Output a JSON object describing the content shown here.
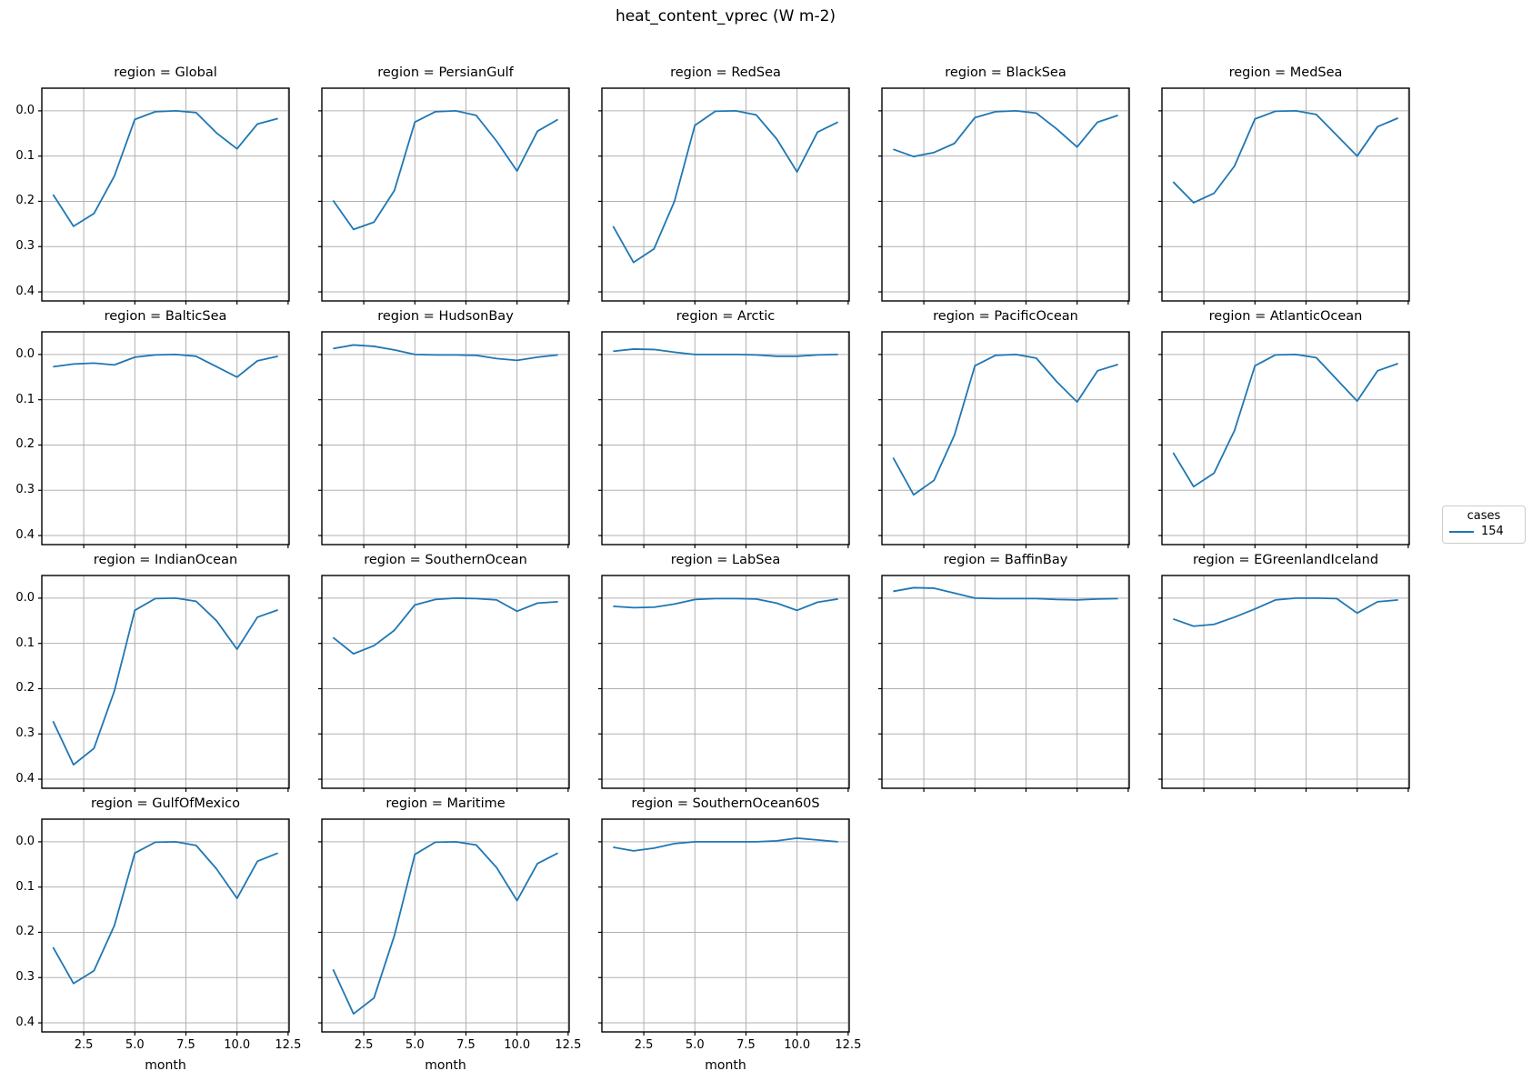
{
  "title": "heat_content_vprec (W m-2)",
  "legend": {
    "title": "cases",
    "entries": [
      {
        "label": "154",
        "color": "#1f77b4"
      }
    ]
  },
  "chart_data": {
    "type": "line",
    "title": "heat_content_vprec (W m-2)",
    "xlabel": "month",
    "x": [
      1,
      2,
      3,
      4,
      5,
      6,
      7,
      8,
      9,
      10,
      11,
      12
    ],
    "x_tick_labels": [
      "2.5",
      "5.0",
      "7.5",
      "10.0",
      "12.5"
    ],
    "x_ticks": [
      2.5,
      5.0,
      7.5,
      10.0,
      12.5
    ],
    "y_tick_labels": [
      "0.0",
      "0.1",
      "0.2",
      "0.3",
      "0.4"
    ],
    "y_ticks": [
      0.0,
      0.1,
      0.2,
      0.3,
      0.4
    ],
    "xlim": [
      0.45,
      12.55
    ],
    "ylim": [
      0.42,
      -0.05
    ],
    "y_axis_inverted": true,
    "grid": true,
    "line_color": "#1f77b4",
    "grid_color": "#b0b0b0",
    "series_name": "154",
    "legend_position": "right-middle",
    "layout": {
      "rows": 4,
      "cols": 5
    },
    "facet_title_prefix": "region = ",
    "facets": [
      {
        "region": "Global",
        "label": "region = Global",
        "values": [
          0.185,
          0.255,
          0.227,
          0.144,
          0.019,
          0.002,
          0.0,
          0.004,
          0.049,
          0.084,
          0.029,
          0.017
        ]
      },
      {
        "region": "PersianGulf",
        "label": "region = PersianGulf",
        "values": [
          0.198,
          0.262,
          0.246,
          0.176,
          0.025,
          0.002,
          0.0,
          0.01,
          0.067,
          0.133,
          0.045,
          0.019
        ]
      },
      {
        "region": "RedSea",
        "label": "region = RedSea",
        "values": [
          0.255,
          0.335,
          0.305,
          0.2,
          0.032,
          0.001,
          0.0,
          0.009,
          0.062,
          0.135,
          0.047,
          0.025
        ]
      },
      {
        "region": "BlackSea",
        "label": "region = BlackSea",
        "values": [
          0.085,
          0.101,
          0.092,
          0.072,
          0.015,
          0.002,
          0.0,
          0.005,
          0.04,
          0.08,
          0.025,
          0.01
        ]
      },
      {
        "region": "MedSea",
        "label": "region = MedSea",
        "values": [
          0.157,
          0.203,
          0.182,
          0.122,
          0.018,
          0.001,
          0.0,
          0.008,
          0.054,
          0.1,
          0.035,
          0.016
        ]
      },
      {
        "region": "BalticSea",
        "label": "region = BalticSea",
        "values": [
          0.027,
          0.021,
          0.019,
          0.023,
          0.006,
          0.001,
          0.0,
          0.004,
          0.027,
          0.05,
          0.014,
          0.004
        ]
      },
      {
        "region": "HudsonBay",
        "label": "region = HudsonBay",
        "values": [
          -0.013,
          -0.021,
          -0.018,
          -0.01,
          0.0,
          0.001,
          0.001,
          0.002,
          0.009,
          0.013,
          0.006,
          0.001
        ]
      },
      {
        "region": "Arctic",
        "label": "region = Arctic",
        "values": [
          -0.007,
          -0.012,
          -0.011,
          -0.005,
          0.0,
          0.0,
          0.0,
          0.001,
          0.004,
          0.004,
          0.001,
          0.0
        ]
      },
      {
        "region": "PacificOcean",
        "label": "region = PacificOcean",
        "values": [
          0.228,
          0.31,
          0.278,
          0.178,
          0.025,
          0.002,
          0.0,
          0.008,
          0.06,
          0.105,
          0.036,
          0.022
        ]
      },
      {
        "region": "AtlanticOcean",
        "label": "region = AtlanticOcean",
        "values": [
          0.217,
          0.292,
          0.262,
          0.168,
          0.025,
          0.001,
          0.0,
          0.007,
          0.055,
          0.103,
          0.036,
          0.02
        ]
      },
      {
        "region": "IndianOcean",
        "label": "region = IndianOcean",
        "values": [
          0.272,
          0.368,
          0.332,
          0.205,
          0.027,
          0.001,
          0.0,
          0.007,
          0.05,
          0.113,
          0.042,
          0.026
        ]
      },
      {
        "region": "SouthernOcean",
        "label": "region = SouthernOcean",
        "values": [
          0.087,
          0.123,
          0.105,
          0.071,
          0.015,
          0.003,
          0.0,
          0.001,
          0.004,
          0.029,
          0.011,
          0.008
        ]
      },
      {
        "region": "LabSea",
        "label": "region = LabSea",
        "values": [
          0.018,
          0.021,
          0.02,
          0.013,
          0.003,
          0.001,
          0.001,
          0.002,
          0.011,
          0.027,
          0.009,
          0.002
        ]
      },
      {
        "region": "BaffinBay",
        "label": "region = BaffinBay",
        "values": [
          -0.015,
          -0.023,
          -0.022,
          -0.011,
          0.0,
          0.001,
          0.001,
          0.001,
          0.003,
          0.004,
          0.002,
          0.001
        ]
      },
      {
        "region": "EGreenlandIceland",
        "label": "region = EGreenlandIceland",
        "values": [
          0.046,
          0.062,
          0.058,
          0.042,
          0.024,
          0.004,
          0.0,
          0.0,
          0.001,
          0.033,
          0.008,
          0.004
        ]
      },
      {
        "region": "GulfOfMexico",
        "label": "region = GulfOfMexico",
        "values": [
          0.233,
          0.313,
          0.285,
          0.185,
          0.025,
          0.001,
          0.0,
          0.008,
          0.06,
          0.125,
          0.043,
          0.025
        ]
      },
      {
        "region": "Maritime",
        "label": "region = Maritime",
        "values": [
          0.282,
          0.38,
          0.345,
          0.207,
          0.028,
          0.001,
          0.0,
          0.007,
          0.057,
          0.13,
          0.048,
          0.025
        ]
      },
      {
        "region": "SouthernOcean60S",
        "label": "region = SouthernOcean60S",
        "values": [
          0.012,
          0.02,
          0.014,
          0.004,
          0.0,
          0.0,
          0.0,
          0.0,
          -0.002,
          -0.008,
          -0.004,
          0.0
        ]
      }
    ]
  }
}
